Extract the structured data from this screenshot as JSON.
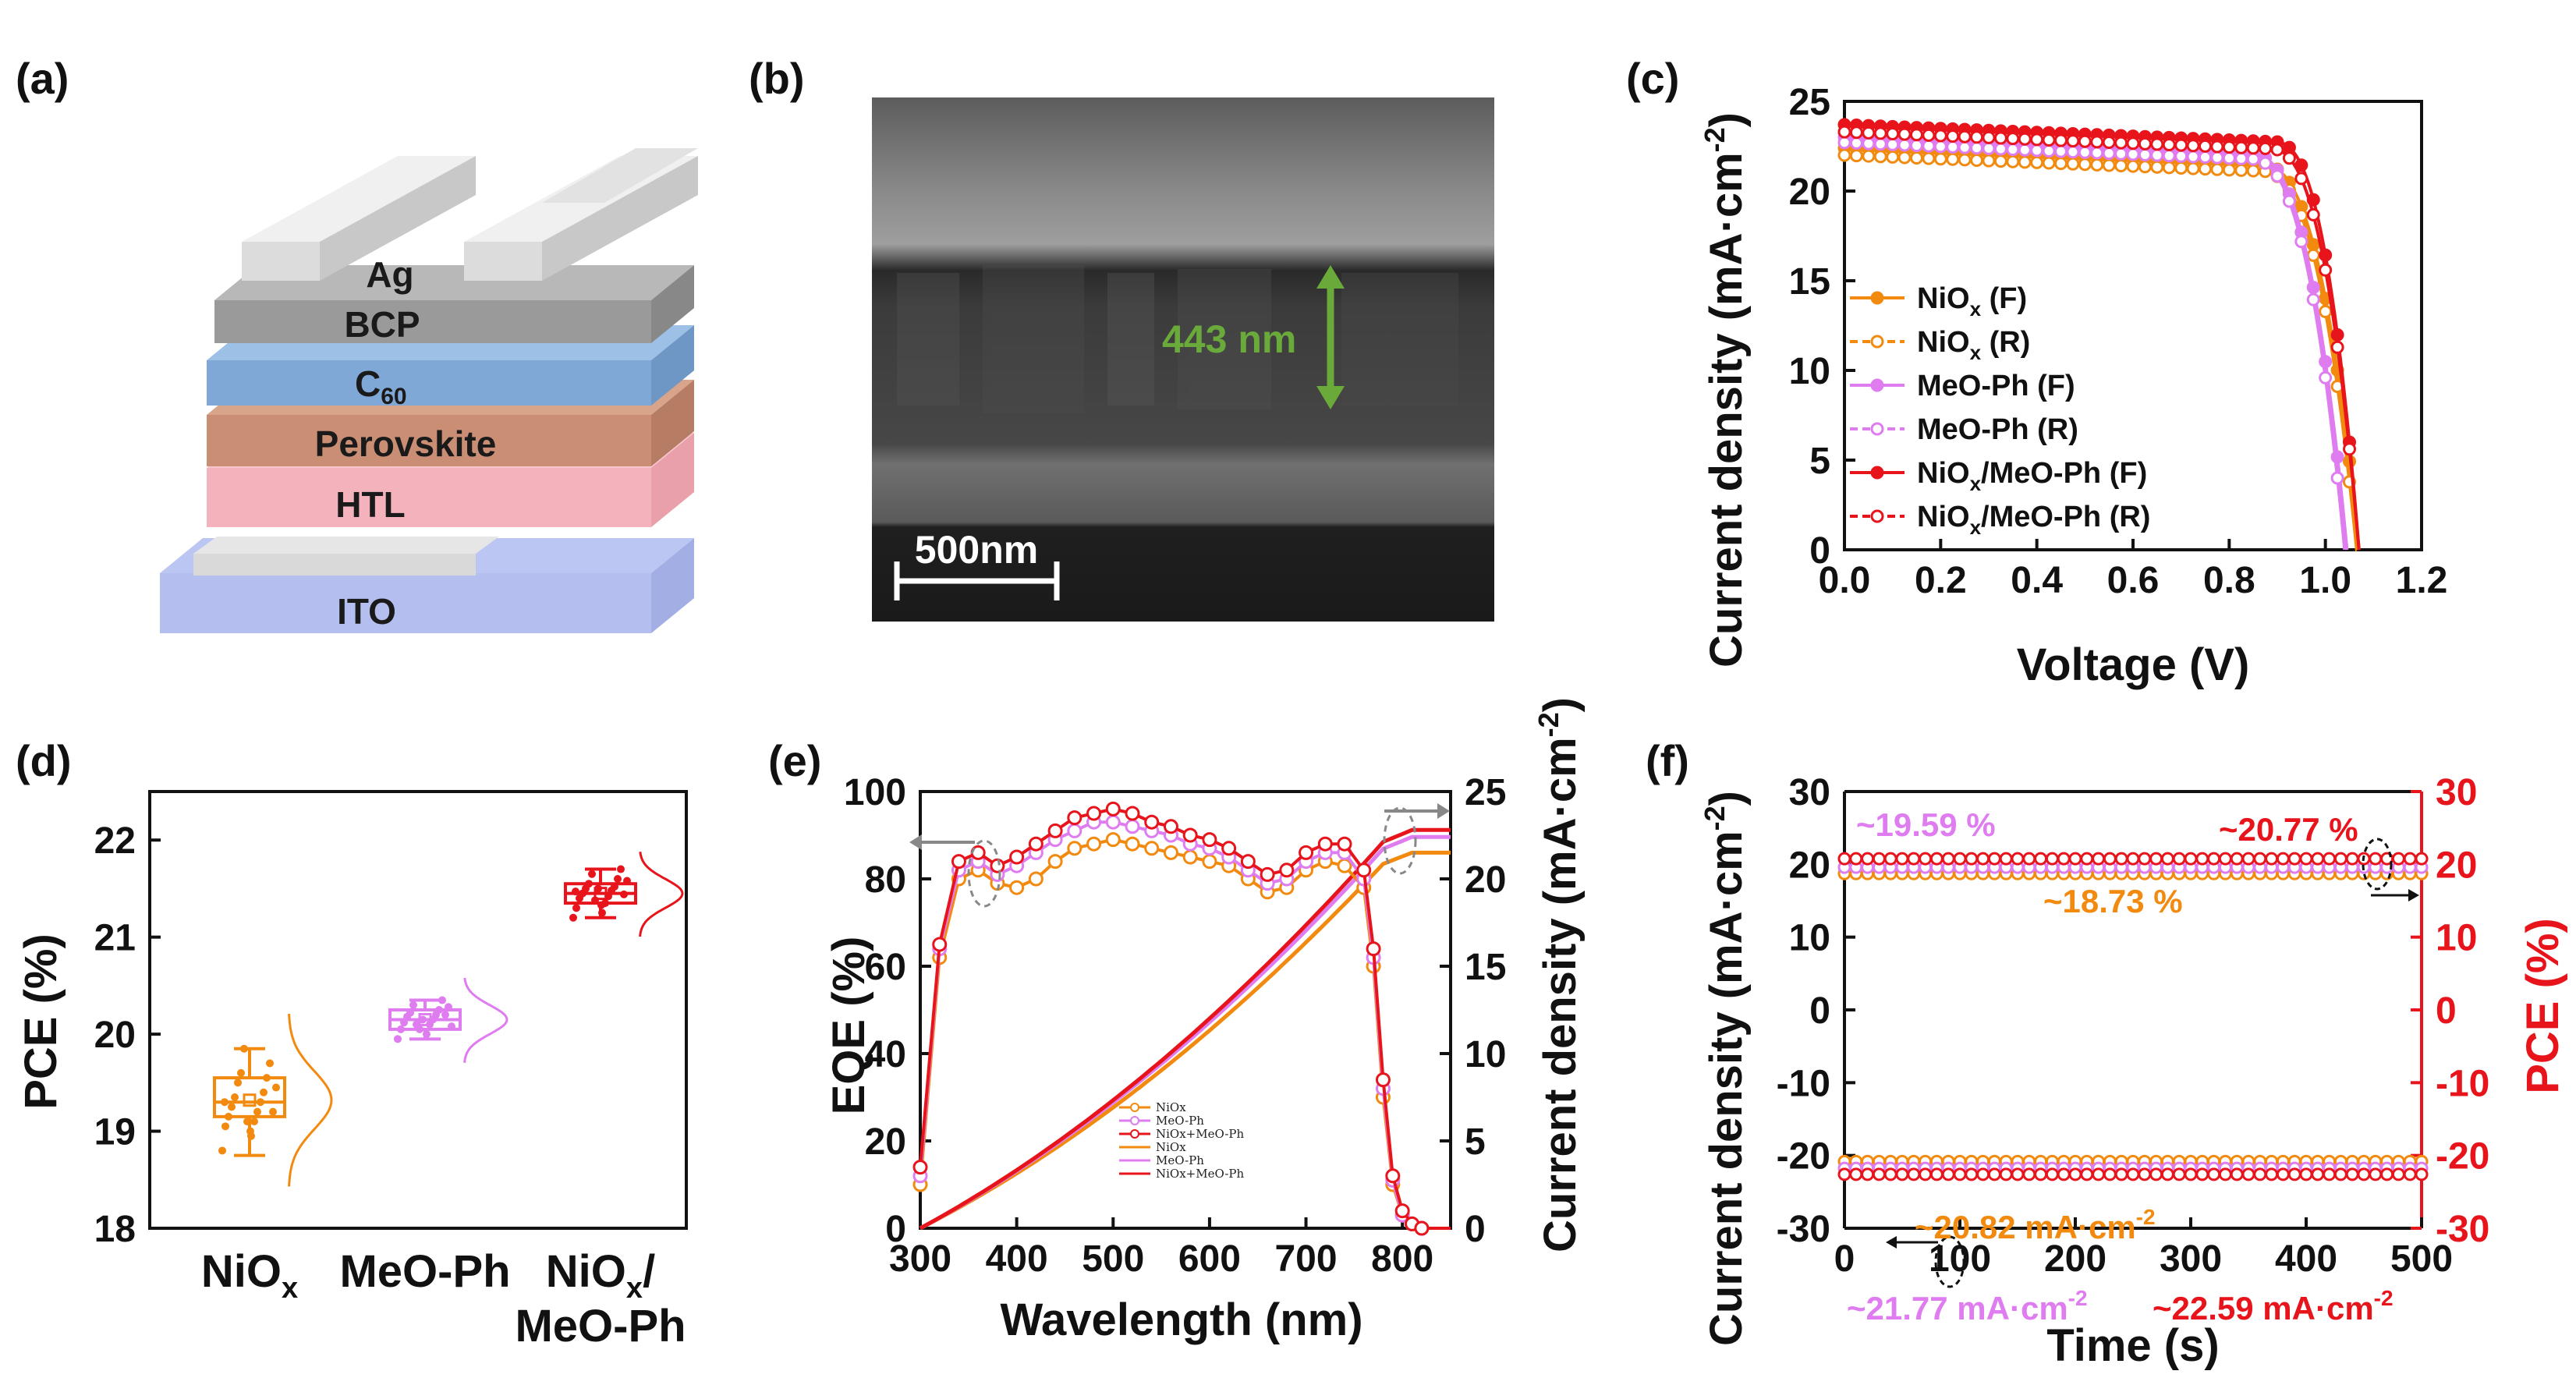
{
  "panels": {
    "a": {
      "label": "(a)",
      "layers": [
        "Ag",
        "BCP",
        "C",
        "Perovskite",
        "HTL",
        "ITO"
      ],
      "c60_sub": "60"
    },
    "b": {
      "label": "(b)",
      "thickness": "443 nm",
      "scalebar": "500nm"
    },
    "c": {
      "label": "(c)"
    },
    "d": {
      "label": "(d)"
    },
    "e": {
      "label": "(e)"
    },
    "f": {
      "label": "(f)"
    }
  },
  "colors": {
    "orange": "#f28a0f",
    "violet": "#de7cf0",
    "red": "#e8141b",
    "green": "#6aaa3a",
    "axis_red": "#e8141b"
  },
  "chart_data": [
    {
      "panel": "c",
      "type": "line",
      "xlabel": "Voltage (V)",
      "ylabel": "Current density (mA·cm",
      "ylabel_sup": "-2",
      "ylabel_end": ")",
      "xlim": [
        0.0,
        1.2
      ],
      "ylim": [
        0,
        25
      ],
      "xticks": [
        "0.0",
        "0.2",
        "0.4",
        "0.6",
        "0.8",
        "1.0",
        "1.2"
      ],
      "yticks": [
        "0",
        "5",
        "10",
        "15",
        "20",
        "25"
      ],
      "legend_position": "left",
      "series": [
        {
          "name": "NiO",
          "sub": "x",
          "tail": " (F)",
          "color": "#f28a0f",
          "jsc": 22.4,
          "voc": 1.07,
          "knee": 0.86
        },
        {
          "name": "NiO",
          "sub": "x",
          "tail": " (R)",
          "color": "#f28a0f",
          "jsc": 22.0,
          "voc": 1.065,
          "knee": 0.86
        },
        {
          "name": "MeO-Ph",
          "sub": "",
          "tail": " (F)",
          "color": "#de7cf0",
          "jsc": 23.0,
          "voc": 1.045,
          "knee": 0.84
        },
        {
          "name": "MeO-Ph",
          "sub": "",
          "tail": " (R)",
          "color": "#de7cf0",
          "jsc": 22.7,
          "voc": 1.04,
          "knee": 0.84
        },
        {
          "name": "NiO",
          "sub": "x",
          "tail": "/MeO-Ph (F)",
          "color": "#e8141b",
          "jsc": 23.7,
          "voc": 1.07,
          "knee": 0.89
        },
        {
          "name": "NiO",
          "sub": "x",
          "tail": "/MeO-Ph (R)",
          "color": "#e8141b",
          "jsc": 23.3,
          "voc": 1.07,
          "knee": 0.88
        }
      ]
    },
    {
      "panel": "d",
      "type": "box",
      "ylabel": "PCE (%)",
      "ylim": [
        18,
        22.5
      ],
      "yticks": [
        "18",
        "19",
        "20",
        "21",
        "22"
      ],
      "categories": [
        {
          "main": "NiO",
          "sub": "x",
          "line2": ""
        },
        {
          "main": "MeO-Ph",
          "sub": "",
          "line2": ""
        },
        {
          "main": "NiO",
          "sub": "x",
          "suffix": "/",
          "line2": "MeO-Ph"
        }
      ],
      "boxes": [
        {
          "color": "#f28a0f",
          "q1": 19.15,
          "median": 19.3,
          "q3": 19.55,
          "mean": 19.32,
          "min": 18.75,
          "max": 19.85,
          "points": [
            18.8,
            18.95,
            19.05,
            19.1,
            19.15,
            19.2,
            19.25,
            19.3,
            19.35,
            19.4,
            19.5,
            19.55,
            19.6,
            19.7,
            19.85,
            19.2,
            19.1,
            19.45,
            19.0,
            19.3
          ]
        },
        {
          "color": "#de7cf0",
          "q1": 20.05,
          "median": 20.15,
          "q3": 20.25,
          "mean": 20.15,
          "min": 19.95,
          "max": 20.35,
          "points": [
            19.95,
            20.0,
            20.05,
            20.1,
            20.12,
            20.15,
            20.18,
            20.2,
            20.22,
            20.25,
            20.3,
            20.35,
            20.1,
            20.2,
            20.05,
            20.28,
            20.15,
            20.08
          ]
        },
        {
          "color": "#e8141b",
          "q1": 21.35,
          "median": 21.45,
          "q3": 21.55,
          "mean": 21.45,
          "min": 21.2,
          "max": 21.7,
          "points": [
            21.2,
            21.25,
            21.3,
            21.35,
            21.4,
            21.42,
            21.45,
            21.48,
            21.5,
            21.52,
            21.55,
            21.6,
            21.65,
            21.7,
            21.38,
            21.44,
            21.5,
            21.58,
            21.33,
            21.47
          ]
        }
      ]
    },
    {
      "panel": "e",
      "type": "line",
      "xlabel": "Wavelength (nm)",
      "ylabel": "EQE (%)",
      "ylabel2": "Current density (mA·cm",
      "ylabel2_sup": "-2",
      "ylabel2_end": ")",
      "xlim": [
        300,
        850
      ],
      "ylim": [
        0,
        100
      ],
      "y2lim": [
        0,
        25
      ],
      "xticks": [
        "300",
        "400",
        "500",
        "600",
        "700",
        "800"
      ],
      "yticks": [
        "0",
        "20",
        "40",
        "60",
        "80",
        "100"
      ],
      "y2ticks": [
        "0",
        "5",
        "10",
        "15",
        "20",
        "25"
      ],
      "legend_position": "center-bottom",
      "legend": [
        "NiOx",
        "MeO-Ph",
        "NiOx+MeO-Ph",
        "NiOx",
        "MeO-Ph",
        "NiOx+MeO-Ph"
      ],
      "eqe_x": [
        300,
        320,
        340,
        360,
        380,
        400,
        420,
        440,
        460,
        480,
        500,
        520,
        540,
        560,
        580,
        600,
        620,
        640,
        660,
        680,
        700,
        720,
        740,
        760,
        770,
        780,
        790,
        800,
        810,
        820,
        850
      ],
      "eqe_series": [
        {
          "name": "NiOx",
          "color": "#f28a0f",
          "values": [
            10,
            62,
            80,
            82,
            79,
            78,
            80,
            84,
            87,
            88,
            89,
            88,
            87,
            86,
            85,
            84,
            83,
            80,
            77,
            78,
            82,
            84,
            83,
            78,
            60,
            30,
            10,
            3,
            1,
            0,
            0
          ]
        },
        {
          "name": "MeO-Ph",
          "color": "#de7cf0",
          "values": [
            12,
            64,
            82,
            84,
            81,
            83,
            86,
            89,
            91,
            93,
            93,
            92,
            91,
            90,
            88,
            87,
            85,
            82,
            79,
            80,
            84,
            86,
            86,
            80,
            62,
            32,
            11,
            3,
            1,
            0,
            0
          ]
        },
        {
          "name": "NiOx+MeO-Ph",
          "color": "#e8141b",
          "values": [
            14,
            65,
            84,
            86,
            83,
            85,
            88,
            91,
            94,
            95,
            96,
            95,
            93,
            92,
            90,
            89,
            87,
            84,
            81,
            82,
            86,
            88,
            88,
            82,
            64,
            34,
            12,
            4,
            1,
            0,
            0
          ]
        }
      ],
      "jsc_series": [
        {
          "name": "NiOx",
          "color": "#f28a0f",
          "final": 21.5
        },
        {
          "name": "MeO-Ph",
          "color": "#de7cf0",
          "final": 22.4
        },
        {
          "name": "NiOx+MeO-Ph",
          "color": "#e8141b",
          "final": 22.8
        }
      ]
    },
    {
      "panel": "f",
      "type": "line",
      "xlabel": "Time (s)",
      "ylabel": "Current density (mA·cm",
      "ylabel_sup": "-2",
      "ylabel_end": ")",
      "ylabel2": "PCE (%)",
      "xlim": [
        0,
        500
      ],
      "ylim": [
        -30,
        30
      ],
      "xticks": [
        "0",
        "100",
        "200",
        "300",
        "400",
        "500"
      ],
      "yticks": [
        "-30",
        "-20",
        "-10",
        "0",
        "10",
        "20",
        "30"
      ],
      "y2ticks": [
        "-30",
        "-20",
        "-10",
        "0",
        "10",
        "20",
        "30"
      ],
      "pce_series": [
        {
          "color": "#f28a0f",
          "value": 18.73
        },
        {
          "color": "#de7cf0",
          "value": 19.59
        },
        {
          "color": "#e8141b",
          "value": 20.77
        }
      ],
      "current_series": [
        {
          "color": "#f28a0f",
          "value": -20.82
        },
        {
          "color": "#de7cf0",
          "value": -21.77
        },
        {
          "color": "#e8141b",
          "value": -22.59
        }
      ],
      "annotations": {
        "pce_violet": "~19.59 %",
        "pce_red": "~20.77 %",
        "pce_orange": "~18.73 %",
        "cur_orange": "~20.82 mA·cm",
        "cur_violet": "~21.77 mA·cm",
        "cur_red": "~22.59 mA·cm",
        "unit_sup": "-2"
      }
    }
  ]
}
